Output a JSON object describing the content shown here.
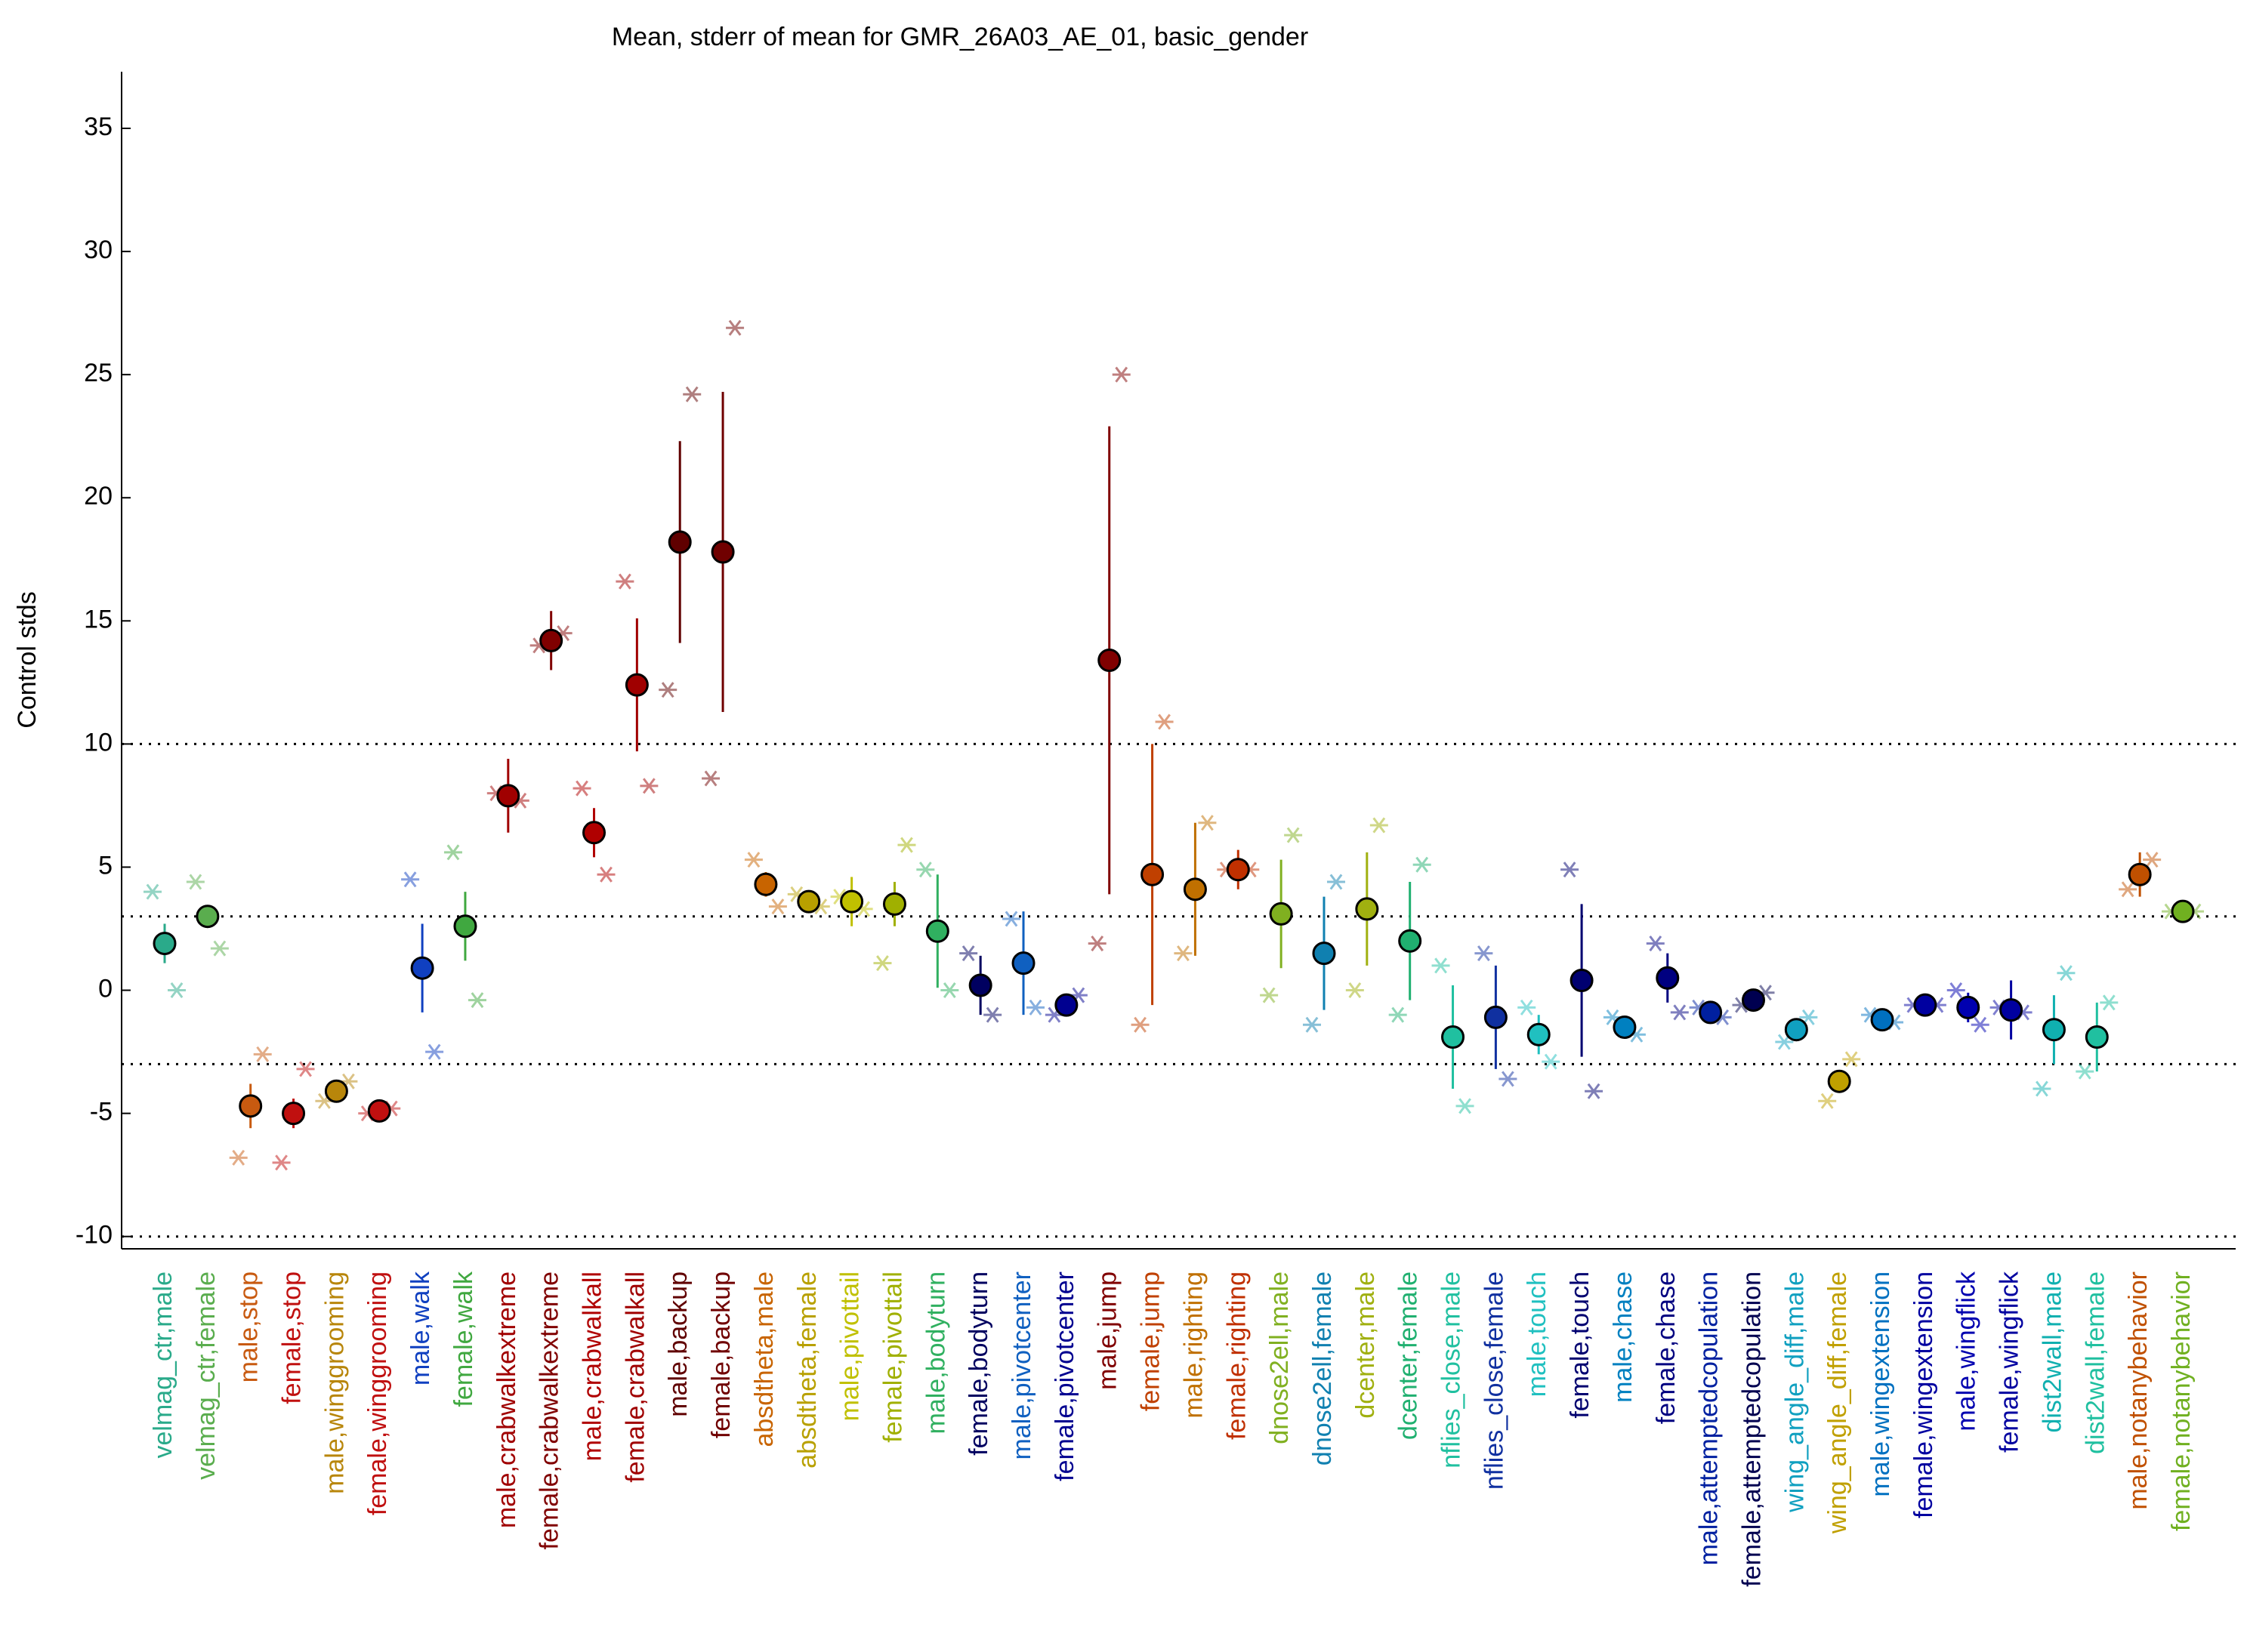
{
  "chart_data": {
    "type": "errorbar",
    "title": "Mean, stderr of mean for GMR_26A03_AE_01, basic_gender",
    "y_label": "Control stds",
    "ylim": [
      -10.5,
      37.3
    ],
    "yticks": [
      -10,
      -5,
      0,
      5,
      10,
      15,
      20,
      25,
      30,
      35
    ],
    "hlines": [
      -10,
      -3,
      3,
      10
    ],
    "categories": [
      "velmag_ctr,male",
      "velmag_ctr,female",
      "male,stop",
      "female,stop",
      "male,winggrooming",
      "female,winggrooming",
      "male,walk",
      "female,walk",
      "male,crabwalkextreme",
      "female,crabwalkextreme",
      "male,crabwalkall",
      "female,crabwalkall",
      "male,backup",
      "female,backup",
      "absdtheta,male",
      "absdtheta,female",
      "male,pivottail",
      "female,pivottail",
      "male,bodyturn",
      "female,bodyturn",
      "male,pivotcenter",
      "female,pivotcenter",
      "male,jump",
      "female,jump",
      "male,righting",
      "female,righting",
      "dnose2ell,male",
      "dnose2ell,female",
      "dcenter,male",
      "dcenter,female",
      "nflies_close,male",
      "nflies_close,female",
      "male,touch",
      "female,touch",
      "male,chase",
      "female,chase",
      "male,attemptedcopulation",
      "female,attemptedcopulation",
      "wing_angle_diff,male",
      "wing_angle_diff,female",
      "male,wingextension",
      "female,wingextension",
      "male,wingflick",
      "female,wingflick",
      "dist2wall,male",
      "dist2wall,female",
      "male,notanybehavior",
      "female,notanybehavior"
    ],
    "values": [
      1.9,
      3.0,
      -4.7,
      -5.0,
      -4.1,
      -4.9,
      0.9,
      2.6,
      7.9,
      14.2,
      6.4,
      12.4,
      18.2,
      17.8,
      4.3,
      3.6,
      3.6,
      3.5,
      2.4,
      0.2,
      1.1,
      -0.6,
      13.4,
      4.7,
      4.1,
      4.9,
      3.1,
      1.5,
      3.3,
      2.0,
      -1.9,
      -1.1,
      -1.8,
      0.4,
      -1.5,
      0.5,
      -0.9,
      -0.4,
      -1.6,
      -3.7,
      -1.2,
      -0.6,
      -0.7,
      -0.8,
      -1.6,
      -1.9,
      4.7,
      3.2
    ],
    "errors": [
      0.8,
      0.3,
      0.9,
      0.6,
      0.3,
      0.2,
      1.8,
      1.4,
      1.5,
      1.2,
      1.0,
      2.7,
      4.1,
      6.5,
      0.5,
      0.3,
      1.0,
      0.9,
      2.3,
      1.2,
      2.1,
      0.4,
      9.5,
      5.3,
      2.7,
      0.8,
      2.2,
      2.3,
      2.3,
      2.4,
      2.1,
      2.1,
      0.8,
      3.1,
      0.2,
      1.0,
      0.2,
      0.2,
      0.2,
      0.3,
      0.2,
      0.2,
      0.6,
      1.2,
      1.4,
      1.4,
      0.9,
      0.3
    ],
    "left_values": [
      4.0,
      4.4,
      -6.8,
      -7.0,
      -4.5,
      -5.0,
      4.5,
      5.6,
      8.0,
      14.0,
      8.2,
      16.6,
      12.2,
      8.6,
      5.3,
      3.9,
      3.8,
      1.1,
      4.9,
      1.5,
      2.9,
      -1.0,
      1.9,
      -1.4,
      1.5,
      4.9,
      -0.2,
      -1.4,
      0,
      -1.0,
      1.0,
      1.5,
      -0.7,
      4.9,
      -1.1,
      1.9,
      -0.7,
      -0.6,
      -2.1,
      -4.5,
      -1.0,
      -0.6,
      0,
      -0.7,
      -4.0,
      -3.3,
      4.1,
      3.2
    ],
    "right_values": [
      0,
      1.7,
      -2.6,
      -3.2,
      -3.7,
      -4.8,
      -2.5,
      -0.4,
      7.7,
      14.5,
      4.7,
      8.3,
      24.2,
      26.9,
      3.4,
      3.4,
      3.3,
      5.9,
      0,
      -1.0,
      -0.7,
      -0.2,
      25.0,
      10.9,
      6.8,
      4.9,
      6.3,
      4.4,
      6.7,
      5.1,
      -4.7,
      -3.6,
      -2.9,
      -4.1,
      -1.8,
      -0.9,
      -1.1,
      -0.1,
      -1.1,
      -2.8,
      -1.3,
      -0.6,
      -1.4,
      -0.9,
      0.7,
      -0.5,
      5.3,
      3.2
    ],
    "colors": [
      "#2aaa8a",
      "#5aad4e",
      "#c85a10",
      "#c0100f",
      "#b8860b",
      "#c01010",
      "#1040c0",
      "#40a840",
      "#a00000",
      "#800000",
      "#b00000",
      "#a00000",
      "#600000",
      "#700000",
      "#c86400",
      "#b8a000",
      "#c0c000",
      "#a0b000",
      "#30b060",
      "#000060",
      "#1060c0",
      "#000090",
      "#800000",
      "#c04000",
      "#c07000",
      "#c03000",
      "#80b020",
      "#1080b0",
      "#a0b010",
      "#20b070",
      "#20c0a0",
      "#1030a0",
      "#20c0c0",
      "#000070",
      "#0080c0",
      "#000080",
      "#0020a0",
      "#000050",
      "#10a0c0",
      "#c0a000",
      "#0070c0",
      "#0000a0",
      "#0000b0",
      "#0000a0",
      "#10b0b0",
      "#20c0a0",
      "#c05000",
      "#70b020"
    ]
  }
}
